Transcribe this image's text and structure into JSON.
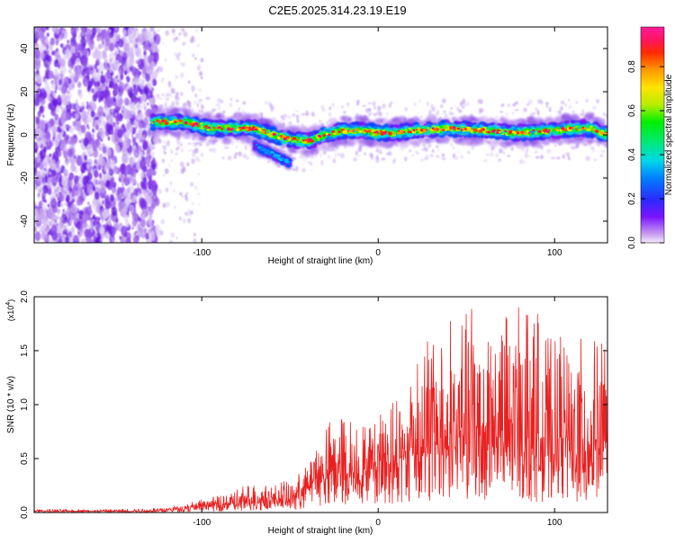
{
  "title": "C2E5.2025.314.23.19.E19",
  "chart_data": [
    {
      "type": "heatmap",
      "title": "C2E5.2025.314.23.19.E19",
      "xlabel": "Height of straight line (km)",
      "ylabel": "Frequency (Hz)",
      "xlim": [
        -195,
        130
      ],
      "ylim": [
        -50,
        50
      ],
      "x_ticks": [
        -100,
        0,
        100
      ],
      "x_tick_labels": [
        "-100",
        "0",
        "100"
      ],
      "y_ticks": [
        -40,
        -20,
        0,
        20,
        40
      ],
      "y_tick_labels": [
        "-40",
        "-20",
        "0",
        "20",
        "40"
      ],
      "noise_region_x": [
        -195,
        -125
      ],
      "ridge": {
        "x": [
          -128,
          -110,
          -95,
          -80,
          -70,
          -60,
          -50,
          -40,
          -30,
          -20,
          -10,
          0,
          10,
          20,
          40,
          60,
          80,
          100,
          110,
          120,
          130
        ],
        "y": [
          6,
          6,
          3,
          3,
          3,
          0,
          -2,
          -3,
          0,
          2,
          2,
          1,
          1,
          2,
          3,
          2,
          1,
          2,
          3,
          3,
          0
        ]
      },
      "branch": {
        "x": [
          -70,
          -62,
          -55,
          -50
        ],
        "y": [
          -5,
          -8,
          -11,
          -13
        ]
      },
      "colorbar": {
        "label": "Normalized spectral amplitude",
        "min": 0.0,
        "max": 0.98,
        "ticks": [
          0.0,
          0.2,
          0.4,
          0.6,
          0.8
        ],
        "tick_labels": [
          "0.0",
          "0.2",
          "0.4",
          "0.6",
          "0.8"
        ]
      }
    },
    {
      "type": "line",
      "xlabel": "Height of straight line (km)",
      "ylabel": "SNR (10 * v/v)",
      "exponent_label": "(x10",
      "exponent_power": "4",
      "exponent_close": ")",
      "xlim": [
        -195,
        130
      ],
      "ylim": [
        0,
        2.0
      ],
      "x_ticks": [
        -100,
        0,
        100
      ],
      "x_tick_labels": [
        "-100",
        "0",
        "100"
      ],
      "y_ticks": [
        0.0,
        0.5,
        1.0,
        1.5,
        2.0
      ],
      "y_tick_labels": [
        "0.0",
        "0.5",
        "1.0",
        "1.5",
        "2.0"
      ],
      "series": [
        {
          "name": "SNR",
          "color": "#e82020",
          "envelope": {
            "x": [
              -195,
              -150,
              -130,
              -120,
              -110,
              -100,
              -90,
              -80,
              -75,
              -70,
              -65,
              -60,
              -55,
              -50,
              -40,
              -35,
              -30,
              -25,
              -20,
              -15,
              -10,
              -5,
              0,
              5,
              10,
              15,
              20,
              25,
              30,
              40,
              50,
              55,
              60,
              70,
              80,
              90,
              95,
              100,
              110,
              120,
              125,
              130
            ],
            "baseline": [
              0.01,
              0.01,
              0.01,
              0.02,
              0.03,
              0.05,
              0.06,
              0.07,
              0.08,
              0.08,
              0.1,
              0.09,
              0.1,
              0.1,
              0.2,
              0.25,
              0.3,
              0.35,
              0.3,
              0.3,
              0.3,
              0.35,
              0.4,
              0.4,
              0.4,
              0.45,
              0.5,
              0.5,
              0.5,
              0.55,
              0.6,
              0.6,
              0.6,
              0.55,
              0.55,
              0.5,
              0.5,
              0.5,
              0.5,
              0.5,
              0.5,
              0.5
            ],
            "peak": [
              0.03,
              0.03,
              0.04,
              0.05,
              0.08,
              0.12,
              0.16,
              0.22,
              0.25,
              0.28,
              0.3,
              0.25,
              0.3,
              0.27,
              0.45,
              0.75,
              0.8,
              0.9,
              0.95,
              0.9,
              0.8,
              0.8,
              0.9,
              1.0,
              1.05,
              1.2,
              1.45,
              1.6,
              1.7,
              1.8,
              1.85,
              2.0,
              1.85,
              1.8,
              1.95,
              1.9,
              1.7,
              1.6,
              1.75,
              1.6,
              1.65,
              1.65
            ]
          }
        }
      ]
    }
  ]
}
